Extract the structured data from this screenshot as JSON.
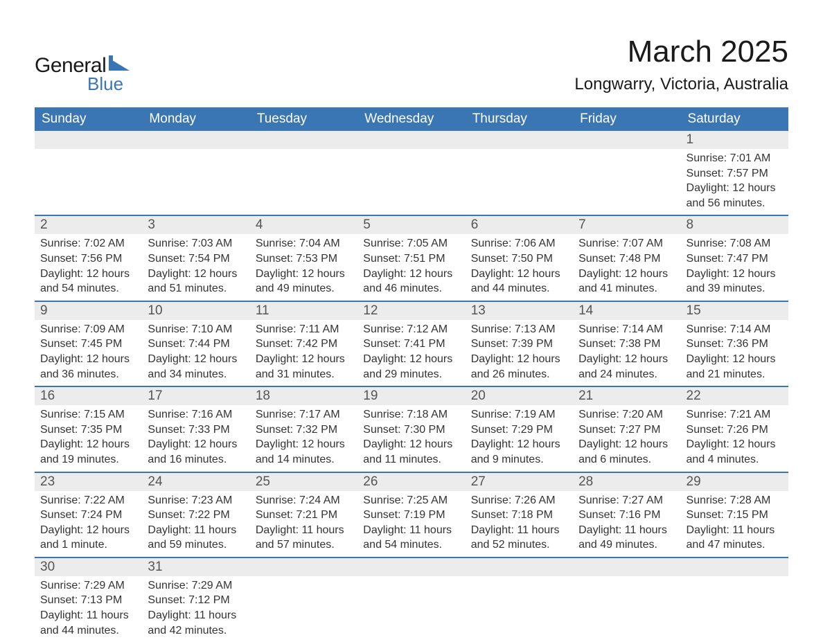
{
  "brand": {
    "name1": "General",
    "name2": "Blue",
    "icon_color": "#3a76b4"
  },
  "title": {
    "month": "March 2025",
    "location": "Longwarry, Victoria, Australia"
  },
  "styling": {
    "header_bg": "#3a76b4",
    "header_text": "#ffffff",
    "daynum_bg": "#ececec",
    "row_border": "#3a76b4",
    "body_text": "#333333",
    "title_fontsize": 44,
    "location_fontsize": 24,
    "weekday_fontsize": 19,
    "daynum_fontsize": 19,
    "detail_fontsize": 16
  },
  "calendar": {
    "type": "table",
    "weekdays": [
      "Sunday",
      "Monday",
      "Tuesday",
      "Wednesday",
      "Thursday",
      "Friday",
      "Saturday"
    ],
    "first_weekday_index": 6,
    "days": [
      {
        "n": 1,
        "sunrise": "7:01 AM",
        "sunset": "7:57 PM",
        "daylight": "12 hours and 56 minutes."
      },
      {
        "n": 2,
        "sunrise": "7:02 AM",
        "sunset": "7:56 PM",
        "daylight": "12 hours and 54 minutes."
      },
      {
        "n": 3,
        "sunrise": "7:03 AM",
        "sunset": "7:54 PM",
        "daylight": "12 hours and 51 minutes."
      },
      {
        "n": 4,
        "sunrise": "7:04 AM",
        "sunset": "7:53 PM",
        "daylight": "12 hours and 49 minutes."
      },
      {
        "n": 5,
        "sunrise": "7:05 AM",
        "sunset": "7:51 PM",
        "daylight": "12 hours and 46 minutes."
      },
      {
        "n": 6,
        "sunrise": "7:06 AM",
        "sunset": "7:50 PM",
        "daylight": "12 hours and 44 minutes."
      },
      {
        "n": 7,
        "sunrise": "7:07 AM",
        "sunset": "7:48 PM",
        "daylight": "12 hours and 41 minutes."
      },
      {
        "n": 8,
        "sunrise": "7:08 AM",
        "sunset": "7:47 PM",
        "daylight": "12 hours and 39 minutes."
      },
      {
        "n": 9,
        "sunrise": "7:09 AM",
        "sunset": "7:45 PM",
        "daylight": "12 hours and 36 minutes."
      },
      {
        "n": 10,
        "sunrise": "7:10 AM",
        "sunset": "7:44 PM",
        "daylight": "12 hours and 34 minutes."
      },
      {
        "n": 11,
        "sunrise": "7:11 AM",
        "sunset": "7:42 PM",
        "daylight": "12 hours and 31 minutes."
      },
      {
        "n": 12,
        "sunrise": "7:12 AM",
        "sunset": "7:41 PM",
        "daylight": "12 hours and 29 minutes."
      },
      {
        "n": 13,
        "sunrise": "7:13 AM",
        "sunset": "7:39 PM",
        "daylight": "12 hours and 26 minutes."
      },
      {
        "n": 14,
        "sunrise": "7:14 AM",
        "sunset": "7:38 PM",
        "daylight": "12 hours and 24 minutes."
      },
      {
        "n": 15,
        "sunrise": "7:14 AM",
        "sunset": "7:36 PM",
        "daylight": "12 hours and 21 minutes."
      },
      {
        "n": 16,
        "sunrise": "7:15 AM",
        "sunset": "7:35 PM",
        "daylight": "12 hours and 19 minutes."
      },
      {
        "n": 17,
        "sunrise": "7:16 AM",
        "sunset": "7:33 PM",
        "daylight": "12 hours and 16 minutes."
      },
      {
        "n": 18,
        "sunrise": "7:17 AM",
        "sunset": "7:32 PM",
        "daylight": "12 hours and 14 minutes."
      },
      {
        "n": 19,
        "sunrise": "7:18 AM",
        "sunset": "7:30 PM",
        "daylight": "12 hours and 11 minutes."
      },
      {
        "n": 20,
        "sunrise": "7:19 AM",
        "sunset": "7:29 PM",
        "daylight": "12 hours and 9 minutes."
      },
      {
        "n": 21,
        "sunrise": "7:20 AM",
        "sunset": "7:27 PM",
        "daylight": "12 hours and 6 minutes."
      },
      {
        "n": 22,
        "sunrise": "7:21 AM",
        "sunset": "7:26 PM",
        "daylight": "12 hours and 4 minutes."
      },
      {
        "n": 23,
        "sunrise": "7:22 AM",
        "sunset": "7:24 PM",
        "daylight": "12 hours and 1 minute."
      },
      {
        "n": 24,
        "sunrise": "7:23 AM",
        "sunset": "7:22 PM",
        "daylight": "11 hours and 59 minutes."
      },
      {
        "n": 25,
        "sunrise": "7:24 AM",
        "sunset": "7:21 PM",
        "daylight": "11 hours and 57 minutes."
      },
      {
        "n": 26,
        "sunrise": "7:25 AM",
        "sunset": "7:19 PM",
        "daylight": "11 hours and 54 minutes."
      },
      {
        "n": 27,
        "sunrise": "7:26 AM",
        "sunset": "7:18 PM",
        "daylight": "11 hours and 52 minutes."
      },
      {
        "n": 28,
        "sunrise": "7:27 AM",
        "sunset": "7:16 PM",
        "daylight": "11 hours and 49 minutes."
      },
      {
        "n": 29,
        "sunrise": "7:28 AM",
        "sunset": "7:15 PM",
        "daylight": "11 hours and 47 minutes."
      },
      {
        "n": 30,
        "sunrise": "7:29 AM",
        "sunset": "7:13 PM",
        "daylight": "11 hours and 44 minutes."
      },
      {
        "n": 31,
        "sunrise": "7:29 AM",
        "sunset": "7:12 PM",
        "daylight": "11 hours and 42 minutes."
      }
    ],
    "labels": {
      "sunrise": "Sunrise:",
      "sunset": "Sunset:",
      "daylight": "Daylight:"
    }
  }
}
